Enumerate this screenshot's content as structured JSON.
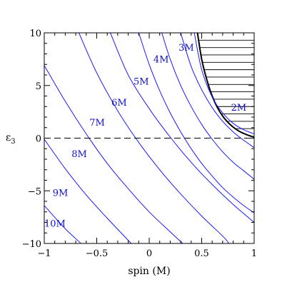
{
  "chart_data": {
    "type": "line",
    "xlabel": "spin (M)",
    "ylabel": "ε",
    "ylabel_subscript": "3",
    "xlim": [
      -1,
      1
    ],
    "ylim": [
      -10,
      10
    ],
    "x_ticks": [
      {
        "value": -1,
        "label": "−1"
      },
      {
        "value": -0.5,
        "label": "−0.5"
      },
      {
        "value": 0,
        "label": "0"
      },
      {
        "value": 0.5,
        "label": "0.5"
      },
      {
        "value": 1,
        "label": "1"
      }
    ],
    "y_ticks": [
      {
        "value": -10,
        "label": "−10"
      },
      {
        "value": -5,
        "label": "−5"
      },
      {
        "value": 0,
        "label": "0"
      },
      {
        "value": 5,
        "label": "5"
      },
      {
        "value": 10,
        "label": "10"
      }
    ],
    "reference_line": {
      "y": 0,
      "style": "dashed"
    },
    "hatched_region": {
      "boundary_color": "#000000",
      "boundary": [
        [
          0.46,
          10
        ],
        [
          0.5,
          7.5
        ],
        [
          0.55,
          5.5
        ],
        [
          0.6,
          4.0
        ],
        [
          0.65,
          2.9
        ],
        [
          0.7,
          2.1
        ],
        [
          0.75,
          1.5
        ],
        [
          0.8,
          1.05
        ],
        [
          0.85,
          0.7
        ],
        [
          0.9,
          0.45
        ],
        [
          0.95,
          0.25
        ],
        [
          1.0,
          0.1
        ]
      ]
    },
    "line_color": "#1a1aff",
    "series": [
      {
        "name": "2M",
        "label_at": [
          0.78,
          2.6
        ],
        "points": [
          [
            0.43,
            10
          ],
          [
            0.5,
            6.5
          ],
          [
            0.6,
            3.9
          ],
          [
            0.7,
            2.4
          ],
          [
            0.8,
            1.4
          ],
          [
            0.9,
            0.8
          ],
          [
            1.0,
            0.4
          ]
        ]
      },
      {
        "name": "3M",
        "label_at": [
          0.28,
          8.3
        ],
        "points": [
          [
            0.3,
            10
          ],
          [
            0.4,
            6.8
          ],
          [
            0.5,
            4.6
          ],
          [
            0.6,
            2.9
          ],
          [
            0.7,
            1.6
          ],
          [
            0.8,
            0.6
          ],
          [
            0.9,
            -0.2
          ],
          [
            1.0,
            -0.9
          ]
        ]
      },
      {
        "name": "4M",
        "label_at": [
          0.04,
          7.2
        ],
        "points": [
          [
            0.12,
            10
          ],
          [
            0.2,
            7.5
          ],
          [
            0.3,
            5.0
          ],
          [
            0.4,
            3.0
          ],
          [
            0.5,
            1.3
          ],
          [
            0.6,
            -0.1
          ],
          [
            0.7,
            -1.3
          ],
          [
            0.8,
            -2.3
          ],
          [
            0.9,
            -3.1
          ],
          [
            1.0,
            -3.9
          ]
        ]
      },
      {
        "name": "5M",
        "label_at": [
          -0.15,
          5.1
        ],
        "points": [
          [
            -0.1,
            10
          ],
          [
            0.0,
            7.0
          ],
          [
            0.1,
            4.5
          ],
          [
            0.2,
            2.4
          ],
          [
            0.3,
            0.6
          ],
          [
            0.4,
            -1.0
          ],
          [
            0.5,
            -2.4
          ],
          [
            0.6,
            -3.6
          ],
          [
            0.7,
            -4.7
          ],
          [
            0.8,
            -5.6
          ],
          [
            0.9,
            -6.4
          ],
          [
            1.0,
            -7.1
          ]
        ]
      },
      {
        "name": "6M",
        "label_at": [
          -0.36,
          3.1
        ],
        "points": [
          [
            -0.37,
            10
          ],
          [
            -0.2,
            6.0
          ],
          [
            0.0,
            2.8
          ],
          [
            0.2,
            0.1
          ],
          [
            0.4,
            -2.3
          ],
          [
            0.6,
            -4.4
          ],
          [
            0.8,
            -6.3
          ],
          [
            1.0,
            -8.0
          ]
        ]
      },
      {
        "name": "7M",
        "label_at": [
          -0.57,
          1.2
        ],
        "points": [
          [
            -0.67,
            10
          ],
          [
            -0.5,
            6.2
          ],
          [
            -0.3,
            2.6
          ],
          [
            -0.1,
            -0.4
          ],
          [
            0.1,
            -3.0
          ],
          [
            0.3,
            -5.3
          ],
          [
            0.5,
            -7.4
          ],
          [
            0.7,
            -9.3
          ],
          [
            0.76,
            -10
          ]
        ]
      },
      {
        "name": "8M",
        "label_at": [
          -0.74,
          -1.8
        ],
        "points": [
          [
            -1.0,
            6.9
          ],
          [
            -0.8,
            3.5
          ],
          [
            -0.6,
            0.4
          ],
          [
            -0.4,
            -2.4
          ],
          [
            -0.2,
            -4.8
          ],
          [
            0.0,
            -7.0
          ],
          [
            0.2,
            -8.9
          ],
          [
            0.32,
            -10
          ]
        ]
      },
      {
        "name": "9M",
        "label_at": [
          -0.92,
          -5.5
        ],
        "points": [
          [
            -1.0,
            -0.1
          ],
          [
            -0.8,
            -2.9
          ],
          [
            -0.6,
            -5.4
          ],
          [
            -0.4,
            -7.6
          ],
          [
            -0.2,
            -9.7
          ],
          [
            -0.17,
            -10
          ]
        ]
      },
      {
        "name": "10M",
        "label_at": [
          -1.0,
          -8.4
        ],
        "points": [
          [
            -1.0,
            -6.4
          ],
          [
            -0.8,
            -8.6
          ],
          [
            -0.65,
            -10
          ]
        ]
      }
    ]
  }
}
